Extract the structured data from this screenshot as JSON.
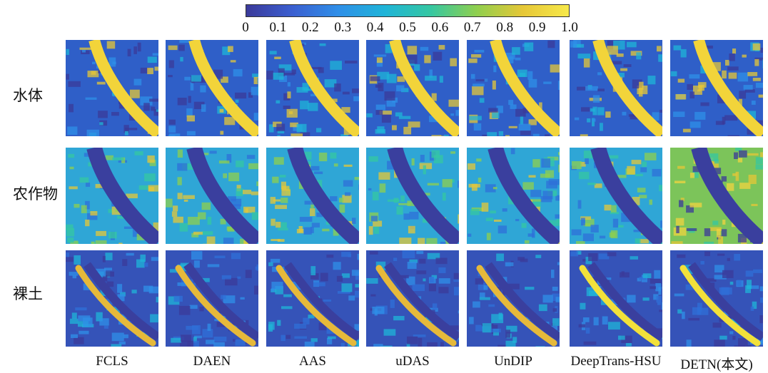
{
  "colorbar": {
    "ticks": [
      "0",
      "0.1",
      "0.2",
      "0.3",
      "0.4",
      "0.5",
      "0.6",
      "0.7",
      "0.8",
      "0.9",
      "1.0"
    ],
    "colors": [
      "#3b3a9a",
      "#3b5fd0",
      "#2f8fe8",
      "#1fb4d8",
      "#35c7a2",
      "#8fcf4e",
      "#e6c737",
      "#f7e94a"
    ]
  },
  "rows": [
    {
      "label": "水体"
    },
    {
      "label": "农作物"
    },
    {
      "label": "裸土"
    }
  ],
  "columns": [
    {
      "label": "FCLS"
    },
    {
      "label": "DAEN"
    },
    {
      "label": "AAS"
    },
    {
      "label": "uDAS"
    },
    {
      "label": "UnDIP"
    },
    {
      "label": "DeepTrans-HSU"
    },
    {
      "label": "DETN(本文)"
    }
  ]
}
